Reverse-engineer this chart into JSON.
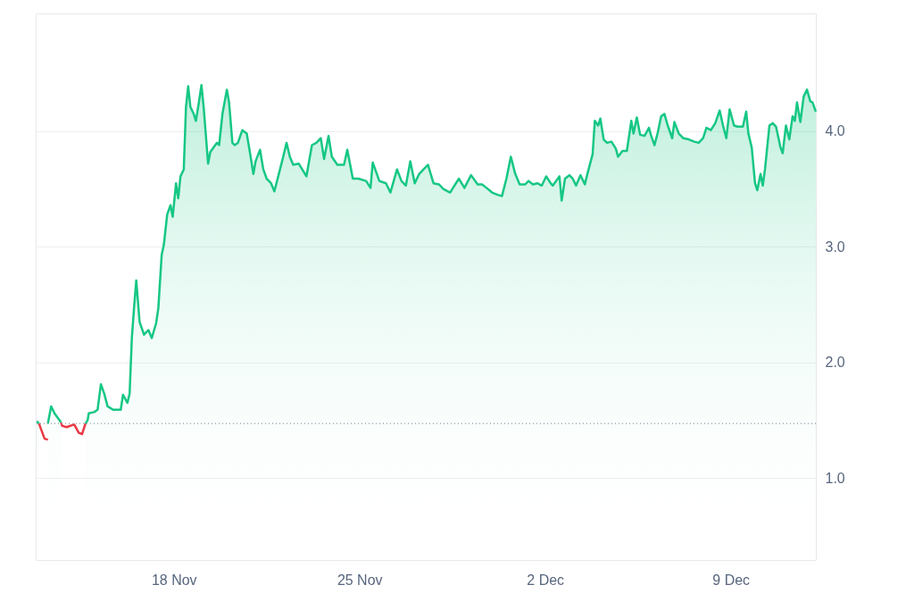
{
  "chart_data": {
    "type": "area",
    "xlim": [
      "--11-12T19:00",
      "--12-12T05:00"
    ],
    "xticks": [
      {
        "value": "--11-18",
        "label": "18 Nov"
      },
      {
        "value": "--11-25",
        "label": "25 Nov"
      },
      {
        "value": "--12-02",
        "label": "2 Dec"
      },
      {
        "value": "--12-09",
        "label": "9 Dec"
      }
    ],
    "ylim": [
      0.29,
      5.02
    ],
    "yticks": [
      {
        "value": 1,
        "label": "1.0"
      },
      {
        "value": 2,
        "label": "2.0"
      },
      {
        "value": 3,
        "label": "3.0"
      },
      {
        "value": 4,
        "label": "4.0"
      }
    ],
    "grid": "y",
    "ref_lines": [
      {
        "axis": "y",
        "value": 1.47,
        "color": "#a0a7b4",
        "line_style": "dotted"
      }
    ],
    "series": [
      {
        "color": "#16c784",
        "x": [
          "--11-12T20:00",
          "--11-12T22:00",
          "--11-13T03:00",
          "--11-13T06:00",
          "--11-13T09:00",
          "--11-13T12:00",
          "--11-13T18:00",
          "--11-13T19:00",
          "--11-14T16:00",
          "--11-14T18:00",
          "--11-14T19:00",
          "--11-15T00:00",
          "--11-15T03:00",
          "--11-15T06:00",
          "--11-15T09:00",
          "--11-15T12:00",
          "--11-15T17:00",
          "--11-16T00:00",
          "--11-16T02:00",
          "--11-16T06:00",
          "--11-16T08:00",
          "--11-16T10:00",
          "--11-16T12:00",
          "--11-16T14:00",
          "--11-16T17:00",
          "--11-16T21:00",
          "--11-17T01:00",
          "--11-17T04:00",
          "--11-17T08:00",
          "--11-17T10:00",
          "--11-17T13:00",
          "--11-17T15:00",
          "--11-17T18:00",
          "--11-17T21:00",
          "--11-17T23:00",
          "--11-18T02:00",
          "--11-18T04:00",
          "--11-18T06:00",
          "--11-18T09:00",
          "--11-18T11:00",
          "--11-18T13:00",
          "--11-18T15:00",
          "--11-18T18:00",
          "--11-18T20:00",
          "--11-18T23:00",
          "--11-19T01:00",
          "--11-19T03:00",
          "--11-19T07:00",
          "--11-19T09:00",
          "--11-19T12:00",
          "--11-19T15:00",
          "--11-19T17:00",
          "--11-19T20:00",
          "--11-20T00:00",
          "--11-20T02:00",
          "--11-20T05:00",
          "--11-20T07:00",
          "--11-20T10:00",
          "--11-20T14:00",
          "--11-20T18:00",
          "--11-20T21:00",
          "--11-21T00:00",
          "--11-21T02:00",
          "--11-21T06:00",
          "--11-21T09:00",
          "--11-21T12:00",
          "--11-21T16:00",
          "--11-21T19:00",
          "--11-21T23:00",
          "--11-22T03:00",
          "--11-22T06:00",
          "--11-22T09:00",
          "--11-22T12:00",
          "--11-22T17:00",
          "--11-23T00:00",
          "--11-23T05:00",
          "--11-23T09:00",
          "--11-23T13:00",
          "--11-23T16:00",
          "--11-23T20:00",
          "--11-23T23:00",
          "--11-24T04:00",
          "--11-24T10:00",
          "--11-24T13:00",
          "--11-24T18:00",
          "--11-24T23:00",
          "--11-25T06:00",
          "--11-25T10:00",
          "--11-25T12:00",
          "--11-25T18:00",
          "--11-26T00:00",
          "--11-26T04:00",
          "--11-26T10:00",
          "--11-26T14:00",
          "--11-26T18:00",
          "--11-26T22:00",
          "--11-27T02:00",
          "--11-27T06:00",
          "--11-27T10:00",
          "--11-27T14:00",
          "--11-27T19:00",
          "--11-28T00:00",
          "--11-28T04:00",
          "--11-28T10:00",
          "--11-28T14:00",
          "--11-28T18:00",
          "--11-28T23:00",
          "--11-29T05:00",
          "--11-29T11:00",
          "--11-29T15:00",
          "--11-29T19:00",
          "--11-30T00:00",
          "--11-30T05:00",
          "--11-30T09:00",
          "--11-30T13:00",
          "--11-30T17:00",
          "--11-30T21:00",
          "--12-01T01:00",
          "--12-01T06:00",
          "--12-01T09:00",
          "--12-01T13:00",
          "--12-01T17:00",
          "--12-01T21:00",
          "--12-02T01:00",
          "--12-02T05:00",
          "--12-02T07:00",
          "--12-02T13:00",
          "--12-02T15:00",
          "--12-02T18:00",
          "--12-02T22:00",
          "--12-03T01:00",
          "--12-03T04:00",
          "--12-03T08:00",
          "--12-03T12:00",
          "--12-03T14:00",
          "--12-03T17:00",
          "--12-03T19:00",
          "--12-03T21:00",
          "--12-04T00:00",
          "--12-04T02:00",
          "--12-04T05:00",
          "--12-04T08:00",
          "--12-04T12:00",
          "--12-04T16:00",
          "--12-04T18:00",
          "--12-04T22:00",
          "--12-05T02:00",
          "--12-05T06:00",
          "--12-05T08:00",
          "--12-05T11:00",
          "--12-05T14:00",
          "--12-05T18:00",
          "--12-05T22:00",
          "--12-06T00:00",
          "--12-06T03:00",
          "--12-06T06:00",
          "--12-06T09:00",
          "--12-06T12:00",
          "--12-06T15:00",
          "--12-06T19:00",
          "--12-06T21:00",
          "--12-07T01:00",
          "--12-07T05:00",
          "--12-07T10:00",
          "--12-07T15:00",
          "--12-07T19:00",
          "--12-07T23:00",
          "--12-08T02:00",
          "--12-08T06:00",
          "--12-08T10:00",
          "--12-08T14:00",
          "--12-08T17:00",
          "--12-08T20:00",
          "--12-08T23:00",
          "--12-09T03:00",
          "--12-09T06:00",
          "--12-09T11:00",
          "--12-09T14:00",
          "--12-09T16:00",
          "--12-09T19:00",
          "--12-09T22:00",
          "--12-10T00:00",
          "--12-10T03:00",
          "--12-10T05:00",
          "--12-10T07:00",
          "--12-10T11:00",
          "--12-10T14:00",
          "--12-10T17:00",
          "--12-10T21:00",
          "--12-10T23:00",
          "--12-11T02:00",
          "--12-11T05:00",
          "--12-11T08:00",
          "--12-11T10:00",
          "--12-11T12:00",
          "--12-11T15:00",
          "--12-11T18:00",
          "--12-11T21:00",
          "--12-12T00:00",
          "--12-12T02:00",
          "--12-12T05:00"
        ],
        "values": [
          1.49,
          1.47,
          null,
          1.47,
          1.62,
          1.56,
          1.48,
          null,
          1.47,
          1.5,
          1.56,
          1.57,
          1.59,
          1.81,
          1.73,
          1.62,
          1.59,
          1.59,
          1.72,
          1.65,
          1.73,
          2.21,
          2.47,
          2.71,
          2.35,
          2.24,
          2.28,
          2.21,
          2.34,
          2.47,
          2.93,
          3.02,
          3.28,
          3.36,
          3.26,
          3.55,
          3.42,
          3.61,
          3.67,
          4.21,
          4.39,
          4.21,
          4.15,
          4.09,
          4.27,
          4.4,
          4.21,
          3.72,
          3.82,
          3.86,
          3.9,
          3.88,
          4.15,
          4.36,
          4.25,
          3.9,
          3.88,
          3.9,
          4.01,
          3.98,
          3.81,
          3.63,
          3.74,
          3.84,
          3.67,
          3.59,
          3.55,
          3.48,
          3.63,
          3.78,
          3.9,
          3.78,
          3.71,
          3.72,
          3.61,
          3.88,
          3.9,
          3.94,
          3.76,
          3.96,
          3.78,
          3.71,
          3.71,
          3.84,
          3.59,
          3.59,
          3.57,
          3.51,
          3.73,
          3.57,
          3.55,
          3.47,
          3.67,
          3.57,
          3.53,
          3.74,
          3.55,
          3.63,
          3.67,
          3.71,
          3.55,
          3.54,
          3.5,
          3.47,
          3.53,
          3.59,
          3.51,
          3.62,
          3.54,
          3.54,
          3.51,
          3.47,
          3.45,
          3.44,
          3.59,
          3.78,
          3.63,
          3.54,
          3.54,
          3.57,
          3.54,
          3.55,
          3.53,
          3.61,
          3.55,
          3.53,
          3.61,
          3.4,
          3.59,
          3.62,
          3.59,
          3.53,
          3.62,
          3.54,
          3.62,
          3.73,
          3.8,
          4.09,
          4.05,
          4.11,
          3.93,
          3.9,
          3.91,
          3.85,
          3.78,
          3.83,
          3.83,
          4.09,
          3.98,
          4.12,
          3.97,
          3.96,
          4.03,
          3.96,
          3.88,
          3.99,
          4.13,
          4.15,
          4.05,
          3.94,
          4.08,
          3.98,
          3.94,
          3.93,
          3.91,
          3.9,
          3.94,
          4.03,
          4.01,
          4.07,
          4.18,
          4.05,
          3.94,
          4.19,
          4.05,
          4.04,
          4.04,
          4.17,
          3.98,
          3.86,
          3.55,
          3.49,
          3.63,
          3.53,
          3.67,
          4.05,
          4.07,
          4.04,
          3.86,
          3.81,
          4.05,
          3.93,
          4.13,
          4.09,
          4.25,
          4.08,
          4.3,
          4.36,
          4.26,
          4.25,
          4.17
        ]
      },
      {
        "type": "line",
        "color": "#ea3943",
        "x": [
          "--11-12T22:00",
          "--11-13T03:00",
          "--11-13T06:00",
          "--11-13T09:00",
          "--11-13T18:00",
          "--11-13T19:00",
          "--11-13T23:00",
          "--11-14T05:00",
          "--11-14T06:00",
          "--11-14T10:00",
          "--11-14T13:00",
          "--11-14T16:00"
        ],
        "values": [
          1.47,
          1.34,
          1.33,
          null,
          1.48,
          1.45,
          1.44,
          1.46,
          1.46,
          1.39,
          1.38,
          1.47
        ]
      }
    ]
  }
}
